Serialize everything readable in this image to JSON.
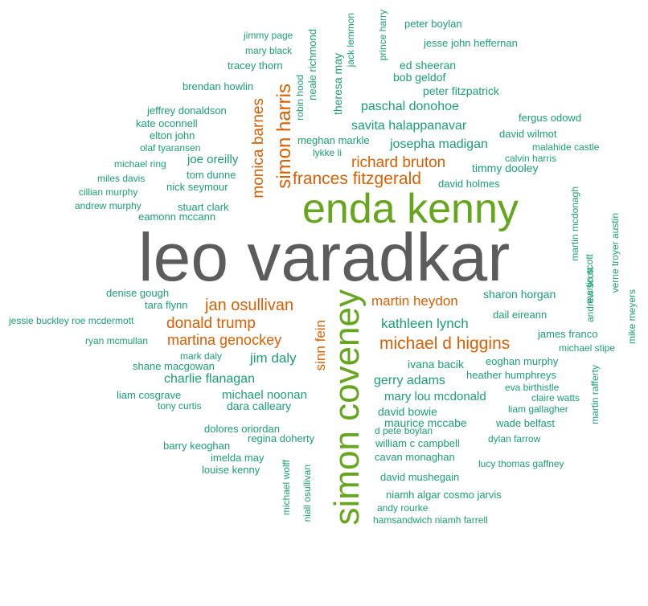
{
  "colors": {
    "grey": "#5c5c5c",
    "green": "#66a61e",
    "orange": "#d95f02",
    "teal": "#1b9e77"
  },
  "words": [
    {
      "text": "leo varadkar",
      "color": "grey"
    },
    {
      "text": "enda kenny",
      "color": "green"
    },
    {
      "text": "simon coveney",
      "color": "green"
    },
    {
      "text": "simon harris",
      "color": "orange"
    },
    {
      "text": "frances fitzgerald",
      "color": "orange"
    },
    {
      "text": "monica barnes",
      "color": "orange"
    },
    {
      "text": "richard bruton",
      "color": "orange"
    },
    {
      "text": "michael d higgins",
      "color": "orange"
    },
    {
      "text": "jan osullivan",
      "color": "orange"
    },
    {
      "text": "martin heydon",
      "color": "orange"
    },
    {
      "text": "donald trump",
      "color": "orange"
    },
    {
      "text": "martina genockey",
      "color": "orange"
    },
    {
      "text": "sinn fein",
      "color": "orange"
    },
    {
      "text": "theresa may",
      "color": "teal"
    },
    {
      "text": "paschal donohoe",
      "color": "teal"
    },
    {
      "text": "savita halappanavar",
      "color": "teal"
    },
    {
      "text": "josepha madigan",
      "color": "teal"
    },
    {
      "text": "timmy dooley",
      "color": "teal"
    },
    {
      "text": "kathleen lynch",
      "color": "teal"
    },
    {
      "text": "jim daly",
      "color": "teal"
    },
    {
      "text": "gerry adams",
      "color": "teal"
    },
    {
      "text": "charlie flanagan",
      "color": "teal"
    },
    {
      "text": "mary lou mcdonald",
      "color": "teal"
    },
    {
      "text": "michael noonan",
      "color": "teal"
    },
    {
      "text": "dara calleary",
      "color": "teal"
    },
    {
      "text": "ivana bacik",
      "color": "teal"
    },
    {
      "text": "joe oreilly",
      "color": "teal"
    },
    {
      "text": "eamonn mccann",
      "color": "teal"
    },
    {
      "text": "jimmy page",
      "color": "teal"
    },
    {
      "text": "mary black",
      "color": "teal"
    },
    {
      "text": "tracey thorn",
      "color": "teal"
    },
    {
      "text": "brendan howlin",
      "color": "teal"
    },
    {
      "text": "jeffrey donaldson",
      "color": "teal"
    },
    {
      "text": "kate oconnell",
      "color": "teal"
    },
    {
      "text": "elton john",
      "color": "teal"
    },
    {
      "text": "olaf tyaransen",
      "color": "teal"
    },
    {
      "text": "michael ring",
      "color": "teal"
    },
    {
      "text": "miles davis",
      "color": "teal"
    },
    {
      "text": "cillian murphy",
      "color": "teal"
    },
    {
      "text": "andrew murphy",
      "color": "teal"
    },
    {
      "text": "tom dunne",
      "color": "teal"
    },
    {
      "text": "nick seymour",
      "color": "teal"
    },
    {
      "text": "stuart clark",
      "color": "teal"
    },
    {
      "text": "neale richmond",
      "color": "teal"
    },
    {
      "text": "robin hood",
      "color": "teal"
    },
    {
      "text": "jack lemmon",
      "color": "teal"
    },
    {
      "text": "prince harry",
      "color": "teal"
    },
    {
      "text": "peter boylan",
      "color": "teal"
    },
    {
      "text": "jesse john heffernan",
      "color": "teal"
    },
    {
      "text": "ed sheeran",
      "color": "teal"
    },
    {
      "text": "bob geldof",
      "color": "teal"
    },
    {
      "text": "peter fitzpatrick",
      "color": "teal"
    },
    {
      "text": "fergus odowd",
      "color": "teal"
    },
    {
      "text": "meghan markle",
      "color": "teal"
    },
    {
      "text": "david wilmot",
      "color": "teal"
    },
    {
      "text": "lykke li",
      "color": "teal"
    },
    {
      "text": "malahide castle",
      "color": "teal"
    },
    {
      "text": "calvin harris",
      "color": "teal"
    },
    {
      "text": "david holmes",
      "color": "teal"
    },
    {
      "text": "martin mcdonagh",
      "color": "teal"
    },
    {
      "text": "verne troyer austin",
      "color": "teal"
    },
    {
      "text": "martin scott",
      "color": "teal"
    },
    {
      "text": "andrew scott",
      "color": "teal"
    },
    {
      "text": "mike meyers",
      "color": "teal"
    },
    {
      "text": "denise gough",
      "color": "teal"
    },
    {
      "text": "tara flynn",
      "color": "teal"
    },
    {
      "text": "sharon horgan",
      "color": "teal"
    },
    {
      "text": "jessie buckley roe mcdermott",
      "color": "teal"
    },
    {
      "text": "dail eireann",
      "color": "teal"
    },
    {
      "text": "ryan mcmullan",
      "color": "teal"
    },
    {
      "text": "james franco",
      "color": "teal"
    },
    {
      "text": "michael stipe",
      "color": "teal"
    },
    {
      "text": "mark daly",
      "color": "teal"
    },
    {
      "text": "eoghan murphy",
      "color": "teal"
    },
    {
      "text": "shane macgowan",
      "color": "teal"
    },
    {
      "text": "heather humphreys",
      "color": "teal"
    },
    {
      "text": "eva birthistle",
      "color": "teal"
    },
    {
      "text": "martin rafferty",
      "color": "teal"
    },
    {
      "text": "liam cosgrave",
      "color": "teal"
    },
    {
      "text": "claire watts",
      "color": "teal"
    },
    {
      "text": "tony curtis",
      "color": "teal"
    },
    {
      "text": "liam gallagher",
      "color": "teal"
    },
    {
      "text": "david bowie",
      "color": "teal"
    },
    {
      "text": "maurice mccabe",
      "color": "teal"
    },
    {
      "text": "wade belfast",
      "color": "teal"
    },
    {
      "text": "dolores oriordan",
      "color": "teal"
    },
    {
      "text": "d pete boylan",
      "color": "teal"
    },
    {
      "text": "regina doherty",
      "color": "teal"
    },
    {
      "text": "dylan farrow",
      "color": "teal"
    },
    {
      "text": "barry keoghan",
      "color": "teal"
    },
    {
      "text": "william c campbell",
      "color": "teal"
    },
    {
      "text": "imelda may",
      "color": "teal"
    },
    {
      "text": "cavan monaghan",
      "color": "teal"
    },
    {
      "text": "lucy thomas gaffney",
      "color": "teal"
    },
    {
      "text": "louise kenny",
      "color": "teal"
    },
    {
      "text": "michael wolff",
      "color": "teal"
    },
    {
      "text": "niall osullivan",
      "color": "teal"
    },
    {
      "text": "david mushegain",
      "color": "teal"
    },
    {
      "text": "niamh algar cosmo jarvis",
      "color": "teal"
    },
    {
      "text": "andy rourke",
      "color": "teal"
    },
    {
      "text": "hamsandwich niamh farrell",
      "color": "teal"
    }
  ]
}
